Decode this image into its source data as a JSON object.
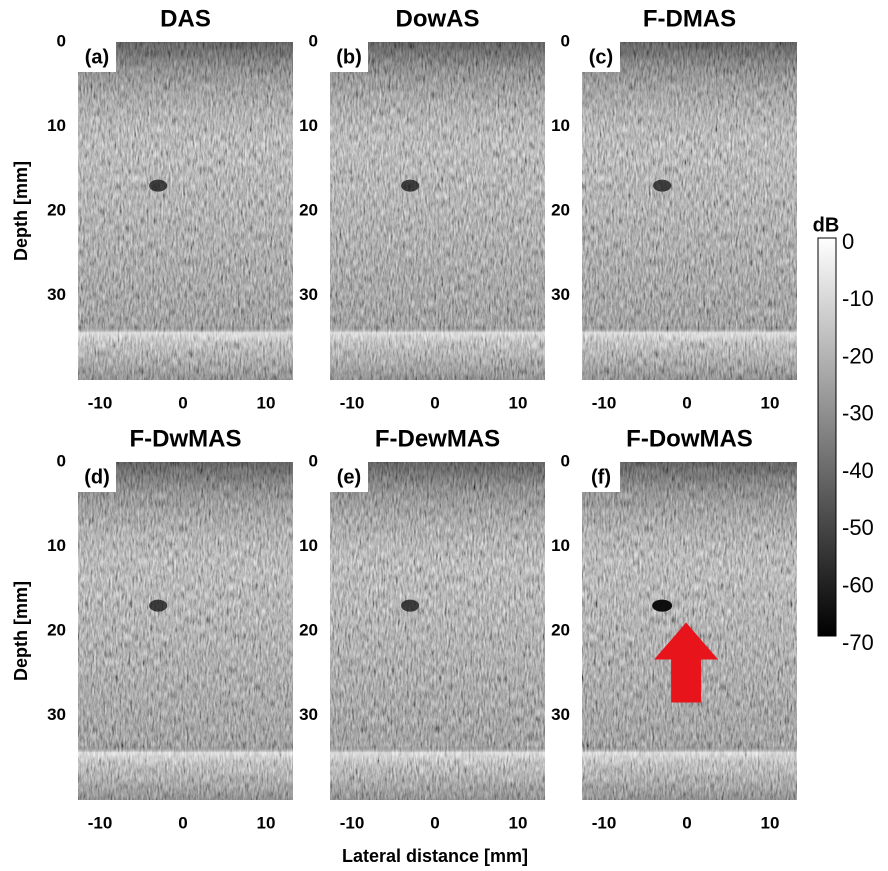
{
  "figure": {
    "panels": [
      {
        "title": "DAS",
        "label": "(a)",
        "xticks": [
          "-10",
          "0",
          "10"
        ],
        "yticks": [
          "0",
          "10",
          "20",
          "30"
        ]
      },
      {
        "title": "DowAS",
        "label": "(b)",
        "xticks": [
          "-10",
          "0",
          "10"
        ],
        "yticks": [
          "0",
          "10",
          "20",
          "30"
        ]
      },
      {
        "title": "F-DMAS",
        "label": "(c)",
        "xticks": [
          "-10",
          "0",
          "10"
        ],
        "yticks": [
          "0",
          "10",
          "20",
          "30"
        ]
      },
      {
        "title": "F-DwMAS",
        "label": "(d)",
        "xticks": [
          "-10",
          "0",
          "10"
        ],
        "yticks": [
          "0",
          "10",
          "20",
          "30"
        ]
      },
      {
        "title": "F-DewMAS",
        "label": "(e)",
        "xticks": [
          "-10",
          "0",
          "10"
        ],
        "yticks": [
          "0",
          "10",
          "20",
          "30"
        ]
      },
      {
        "title": "F-DowMAS",
        "label": "(f)",
        "xticks": [
          "-10",
          "0",
          "10"
        ],
        "yticks": [
          "0",
          "10",
          "20",
          "30"
        ]
      }
    ],
    "y_label": "Depth [mm]",
    "x_label": "Lateral distance [mm]",
    "colorbar": {
      "unit": "dB",
      "ticks": [
        "0",
        "-10",
        "-20",
        "-30",
        "-40",
        "-50",
        "-60",
        "-70"
      ]
    }
  }
}
